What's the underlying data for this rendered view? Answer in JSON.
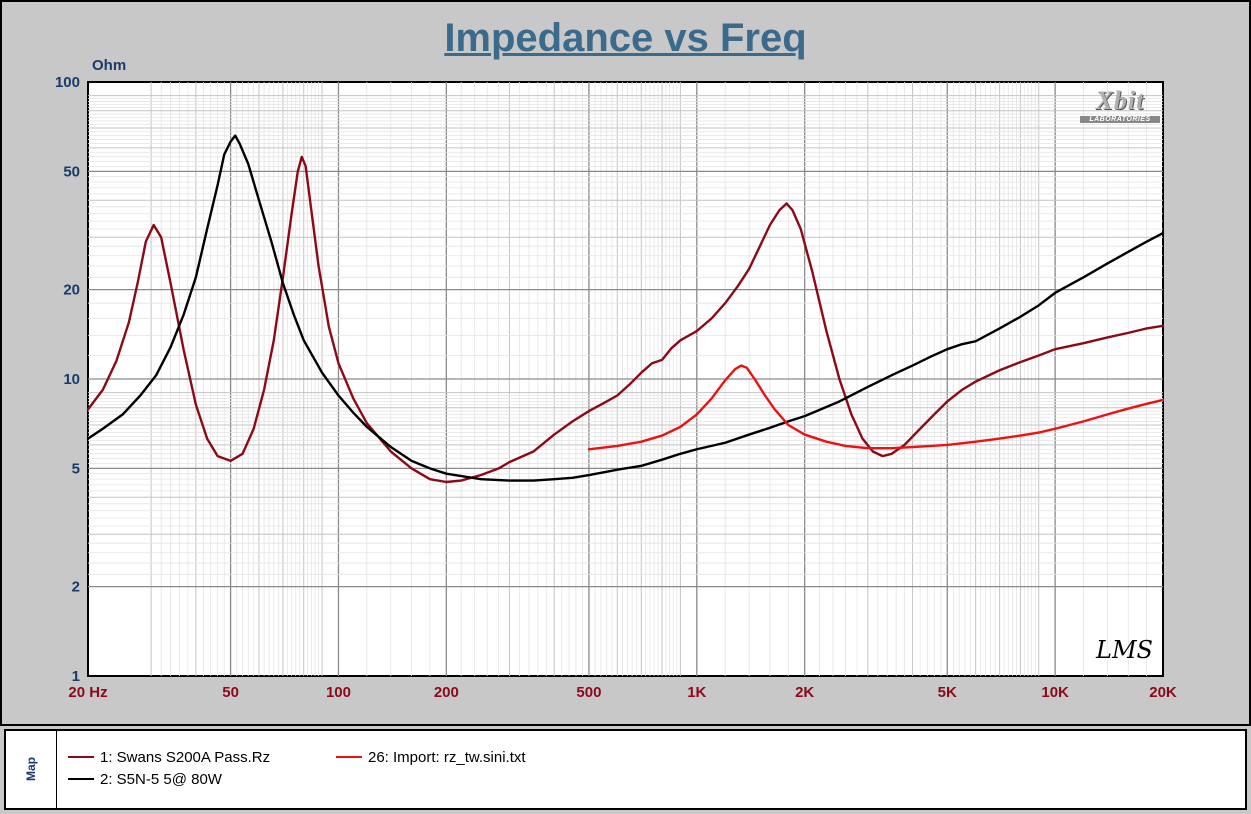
{
  "title": "Impedance vs Freq",
  "y_unit": "Ohm",
  "logo": {
    "text": "Xbit",
    "subtext": "LABORATORIES"
  },
  "watermark": "LMS",
  "legend": {
    "side_label": "Map",
    "items": [
      {
        "label": "1: Swans S200A Pass.Rz",
        "color": "#8b0a1a"
      },
      {
        "label": "2: S5N-5 5@ 80W",
        "color": "#000000"
      },
      {
        "label": "26: Import: rz_tw.sini.txt",
        "color": "#ee1111"
      }
    ]
  },
  "chart_data": {
    "type": "line",
    "title": "Impedance vs Freq",
    "xlabel": "",
    "ylabel": "Ohm",
    "x_scale": "log",
    "y_scale": "log",
    "xlim": [
      20,
      20000
    ],
    "ylim": [
      1,
      100
    ],
    "grid": true,
    "x_ticks": [
      {
        "value": 20,
        "label": "20 Hz"
      },
      {
        "value": 50,
        "label": "50"
      },
      {
        "value": 100,
        "label": "100"
      },
      {
        "value": 200,
        "label": "200"
      },
      {
        "value": 500,
        "label": "500"
      },
      {
        "value": 1000,
        "label": "1K"
      },
      {
        "value": 2000,
        "label": "2K"
      },
      {
        "value": 5000,
        "label": "5K"
      },
      {
        "value": 10000,
        "label": "10K"
      },
      {
        "value": 20000,
        "label": "20K"
      }
    ],
    "y_ticks": [
      {
        "value": 1,
        "label": "1"
      },
      {
        "value": 2,
        "label": "2"
      },
      {
        "value": 5,
        "label": "5"
      },
      {
        "value": 10,
        "label": "10"
      },
      {
        "value": 20,
        "label": "20"
      },
      {
        "value": 50,
        "label": "50"
      },
      {
        "value": 100,
        "label": "100"
      }
    ],
    "series": [
      {
        "name": "1: Swans S200A Pass.Rz",
        "color": "#8b0a1a",
        "points": [
          [
            20,
            7.9
          ],
          [
            22,
            9.2
          ],
          [
            24,
            11.5
          ],
          [
            26,
            15.5
          ],
          [
            27.5,
            21
          ],
          [
            29,
            29
          ],
          [
            30.5,
            33
          ],
          [
            32,
            30
          ],
          [
            34,
            21
          ],
          [
            37,
            12.5
          ],
          [
            40,
            8.2
          ],
          [
            43,
            6.3
          ],
          [
            46,
            5.5
          ],
          [
            50,
            5.3
          ],
          [
            54,
            5.6
          ],
          [
            58,
            6.8
          ],
          [
            62,
            9.2
          ],
          [
            66,
            13.5
          ],
          [
            70,
            22
          ],
          [
            74,
            36
          ],
          [
            77,
            50
          ],
          [
            79,
            56
          ],
          [
            81,
            52
          ],
          [
            84,
            37
          ],
          [
            88,
            24
          ],
          [
            94,
            15
          ],
          [
            100,
            11.3
          ],
          [
            110,
            8.6
          ],
          [
            120,
            7.1
          ],
          [
            140,
            5.7
          ],
          [
            160,
            5.0
          ],
          [
            180,
            4.6
          ],
          [
            200,
            4.5
          ],
          [
            220,
            4.55
          ],
          [
            250,
            4.75
          ],
          [
            280,
            5.0
          ],
          [
            300,
            5.25
          ],
          [
            350,
            5.7
          ],
          [
            400,
            6.5
          ],
          [
            450,
            7.2
          ],
          [
            500,
            7.8
          ],
          [
            550,
            8.3
          ],
          [
            600,
            8.8
          ],
          [
            650,
            9.6
          ],
          [
            700,
            10.5
          ],
          [
            750,
            11.3
          ],
          [
            800,
            11.6
          ],
          [
            850,
            12.7
          ],
          [
            900,
            13.5
          ],
          [
            950,
            14.0
          ],
          [
            1000,
            14.5
          ],
          [
            1100,
            16.0
          ],
          [
            1200,
            18.0
          ],
          [
            1300,
            20.5
          ],
          [
            1400,
            23.5
          ],
          [
            1500,
            28
          ],
          [
            1600,
            33
          ],
          [
            1700,
            37
          ],
          [
            1780,
            39
          ],
          [
            1850,
            37
          ],
          [
            1950,
            32
          ],
          [
            2100,
            23
          ],
          [
            2300,
            14.5
          ],
          [
            2500,
            10.0
          ],
          [
            2700,
            7.6
          ],
          [
            2900,
            6.3
          ],
          [
            3100,
            5.7
          ],
          [
            3300,
            5.5
          ],
          [
            3500,
            5.6
          ],
          [
            3800,
            6.0
          ],
          [
            4200,
            6.8
          ],
          [
            4600,
            7.6
          ],
          [
            5000,
            8.4
          ],
          [
            5500,
            9.2
          ],
          [
            6000,
            9.8
          ],
          [
            7000,
            10.7
          ],
          [
            8000,
            11.4
          ],
          [
            9000,
            12.0
          ],
          [
            10000,
            12.6
          ],
          [
            12000,
            13.2
          ],
          [
            14000,
            13.8
          ],
          [
            16000,
            14.3
          ],
          [
            18000,
            14.8
          ],
          [
            20000,
            15.1
          ]
        ]
      },
      {
        "name": "2: S5N-5 5@ 80W",
        "color": "#000000",
        "points": [
          [
            20,
            6.3
          ],
          [
            22,
            6.8
          ],
          [
            25,
            7.6
          ],
          [
            28,
            8.8
          ],
          [
            31,
            10.3
          ],
          [
            34,
            12.8
          ],
          [
            37,
            16.5
          ],
          [
            40,
            22
          ],
          [
            43,
            32
          ],
          [
            46,
            45
          ],
          [
            48,
            57
          ],
          [
            50,
            63
          ],
          [
            51.5,
            66
          ],
          [
            53,
            62
          ],
          [
            56,
            53
          ],
          [
            60,
            40
          ],
          [
            65,
            29
          ],
          [
            70,
            21
          ],
          [
            75,
            16.5
          ],
          [
            80,
            13.5
          ],
          [
            90,
            10.5
          ],
          [
            100,
            8.8
          ],
          [
            110,
            7.7
          ],
          [
            120,
            6.9
          ],
          [
            140,
            5.9
          ],
          [
            160,
            5.3
          ],
          [
            180,
            5.0
          ],
          [
            200,
            4.8
          ],
          [
            250,
            4.6
          ],
          [
            300,
            4.55
          ],
          [
            350,
            4.55
          ],
          [
            400,
            4.6
          ],
          [
            450,
            4.65
          ],
          [
            500,
            4.75
          ],
          [
            550,
            4.85
          ],
          [
            600,
            4.95
          ],
          [
            700,
            5.1
          ],
          [
            800,
            5.35
          ],
          [
            900,
            5.6
          ],
          [
            1000,
            5.8
          ],
          [
            1200,
            6.1
          ],
          [
            1400,
            6.5
          ],
          [
            1600,
            6.85
          ],
          [
            1800,
            7.2
          ],
          [
            2000,
            7.5
          ],
          [
            2500,
            8.4
          ],
          [
            3000,
            9.4
          ],
          [
            3500,
            10.3
          ],
          [
            4000,
            11.1
          ],
          [
            4500,
            11.9
          ],
          [
            5000,
            12.6
          ],
          [
            5500,
            13.1
          ],
          [
            6000,
            13.4
          ],
          [
            7000,
            14.8
          ],
          [
            8000,
            16.2
          ],
          [
            9000,
            17.7
          ],
          [
            10000,
            19.5
          ],
          [
            12000,
            22
          ],
          [
            14000,
            24.5
          ],
          [
            16000,
            26.8
          ],
          [
            18000,
            29
          ],
          [
            20000,
            31
          ]
        ]
      },
      {
        "name": "26: Import: rz_tw.sini.txt",
        "color": "#ee1111",
        "points": [
          [
            500,
            5.8
          ],
          [
            600,
            5.95
          ],
          [
            700,
            6.15
          ],
          [
            800,
            6.45
          ],
          [
            900,
            6.9
          ],
          [
            1000,
            7.6
          ],
          [
            1100,
            8.6
          ],
          [
            1200,
            9.9
          ],
          [
            1280,
            10.8
          ],
          [
            1330,
            11.1
          ],
          [
            1380,
            10.9
          ],
          [
            1450,
            10.0
          ],
          [
            1550,
            8.8
          ],
          [
            1650,
            7.9
          ],
          [
            1800,
            7.0
          ],
          [
            2000,
            6.5
          ],
          [
            2300,
            6.15
          ],
          [
            2600,
            5.95
          ],
          [
            3000,
            5.85
          ],
          [
            3500,
            5.85
          ],
          [
            4000,
            5.9
          ],
          [
            5000,
            6.0
          ],
          [
            6000,
            6.15
          ],
          [
            7000,
            6.3
          ],
          [
            8000,
            6.45
          ],
          [
            9000,
            6.6
          ],
          [
            10000,
            6.8
          ],
          [
            12000,
            7.2
          ],
          [
            14000,
            7.6
          ],
          [
            16000,
            7.95
          ],
          [
            18000,
            8.25
          ],
          [
            20000,
            8.5
          ]
        ]
      }
    ]
  }
}
